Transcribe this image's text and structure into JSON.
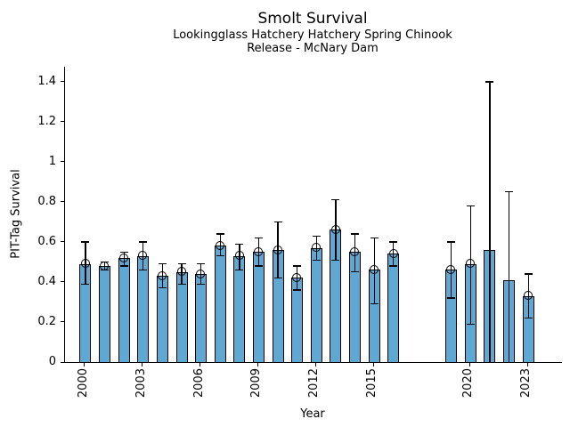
{
  "chart_data": {
    "type": "bar",
    "title": "Smolt Survival",
    "subtitle1": "Lookingglass Hatchery Hatchery Spring Chinook",
    "subtitle2": "Release - McNary Dam",
    "xlabel": "Year",
    "ylabel": "PIT-Tag Survival",
    "ylim": [
      0,
      1.475
    ],
    "xlim": [
      1998.94,
      2024.75
    ],
    "grid": false,
    "legend": "none",
    "bar_color": "#5fa8d3",
    "bar_edge_color": "#000000",
    "error_color": "#000000",
    "yticks": [
      0,
      0.2,
      0.4,
      0.6,
      0.8,
      1,
      1.2,
      1.4
    ],
    "ytick_labels": [
      "0",
      "0.2",
      "0.4",
      "0.6",
      "0.8",
      "1",
      "1.2",
      "1.4"
    ],
    "xticks": [
      2000,
      2003,
      2006,
      2009,
      2012,
      2015,
      2020,
      2023
    ],
    "xtick_labels": [
      "2000",
      "2003",
      "2006",
      "2009",
      "2012",
      "2015",
      "2020",
      "2023"
    ],
    "series": [
      {
        "year": 2000,
        "value": 0.49,
        "err_low": 0.39,
        "err_high": 0.6,
        "marker": true,
        "low_cap": true
      },
      {
        "year": 2001,
        "value": 0.48,
        "err_low": 0.46,
        "err_high": 0.5,
        "marker": true,
        "low_cap": true
      },
      {
        "year": 2002,
        "value": 0.52,
        "err_low": 0.48,
        "err_high": 0.55,
        "marker": true,
        "low_cap": true
      },
      {
        "year": 2003,
        "value": 0.53,
        "err_low": 0.46,
        "err_high": 0.6,
        "marker": true,
        "low_cap": true
      },
      {
        "year": 2004,
        "value": 0.43,
        "err_low": 0.37,
        "err_high": 0.49,
        "marker": true,
        "low_cap": true
      },
      {
        "year": 2005,
        "value": 0.45,
        "err_low": 0.39,
        "err_high": 0.49,
        "marker": true,
        "low_cap": true
      },
      {
        "year": 2006,
        "value": 0.44,
        "err_low": 0.39,
        "err_high": 0.49,
        "marker": true,
        "low_cap": true
      },
      {
        "year": 2007,
        "value": 0.58,
        "err_low": 0.53,
        "err_high": 0.64,
        "marker": true,
        "low_cap": true
      },
      {
        "year": 2008,
        "value": 0.53,
        "err_low": 0.46,
        "err_high": 0.59,
        "marker": true,
        "low_cap": true
      },
      {
        "year": 2009,
        "value": 0.55,
        "err_low": 0.48,
        "err_high": 0.62,
        "marker": true,
        "low_cap": true
      },
      {
        "year": 2010,
        "value": 0.56,
        "err_low": 0.42,
        "err_high": 0.7,
        "marker": true,
        "low_cap": true
      },
      {
        "year": 2011,
        "value": 0.42,
        "err_low": 0.36,
        "err_high": 0.48,
        "marker": true,
        "low_cap": true
      },
      {
        "year": 2012,
        "value": 0.57,
        "err_low": 0.51,
        "err_high": 0.63,
        "marker": true,
        "low_cap": true
      },
      {
        "year": 2013,
        "value": 0.66,
        "err_low": 0.51,
        "err_high": 0.81,
        "marker": true,
        "low_cap": true
      },
      {
        "year": 2014,
        "value": 0.55,
        "err_low": 0.45,
        "err_high": 0.64,
        "marker": true,
        "low_cap": true
      },
      {
        "year": 2015,
        "value": 0.46,
        "err_low": 0.29,
        "err_high": 0.62,
        "marker": true,
        "low_cap": true
      },
      {
        "year": 2016,
        "value": 0.54,
        "err_low": 0.48,
        "err_high": 0.6,
        "marker": true,
        "low_cap": true
      },
      {
        "year": 2019,
        "value": 0.46,
        "err_low": 0.32,
        "err_high": 0.6,
        "marker": true,
        "low_cap": true
      },
      {
        "year": 2020,
        "value": 0.49,
        "err_low": 0.19,
        "err_high": 0.78,
        "marker": true,
        "low_cap": true
      },
      {
        "year": 2021,
        "value": 0.56,
        "err_low": 0.0,
        "err_high": 1.4,
        "marker": false,
        "low_cap": false
      },
      {
        "year": 2022,
        "value": 0.41,
        "err_low": 0.0,
        "err_high": 0.85,
        "marker": false,
        "low_cap": false
      },
      {
        "year": 2023,
        "value": 0.33,
        "err_low": 0.22,
        "err_high": 0.44,
        "marker": true,
        "low_cap": true
      }
    ]
  }
}
